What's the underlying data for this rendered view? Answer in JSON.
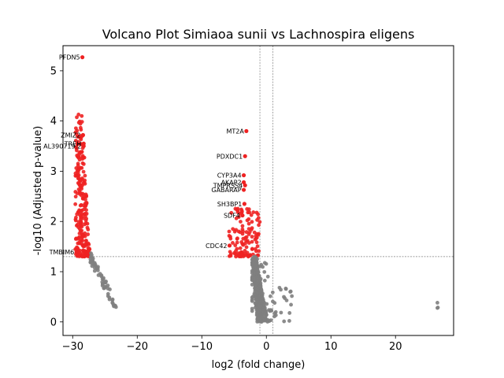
{
  "chart_data": {
    "type": "scatter",
    "title": "Volcano Plot Simiaoa sunii vs Lachnospira eligens",
    "xlabel": "log2 (fold change)",
    "ylabel": "-log10 (Adjusted p-value)",
    "xlim": [
      -31.5,
      29
    ],
    "ylim": [
      -0.27,
      5.5
    ],
    "xticks": [
      -30,
      -20,
      -10,
      0,
      10,
      20
    ],
    "yticks": [
      0,
      1,
      2,
      3,
      4,
      5
    ],
    "threshold_lines": {
      "y": 1.3,
      "x": [
        -1,
        1
      ]
    },
    "colors": {
      "significant": "#ee2222",
      "not_significant": "#808080",
      "threshold": "#808080"
    },
    "highlighted_points": [
      {
        "label": "PFDN5",
        "x": -28.5,
        "y": 5.27
      },
      {
        "label": "MT2A",
        "x": -3.1,
        "y": 3.8
      },
      {
        "label": "PDXDC1",
        "x": -3.3,
        "y": 3.3
      },
      {
        "label": "CYP3A4",
        "x": -3.5,
        "y": 2.92
      },
      {
        "label": "AKAP2",
        "x": -3.5,
        "y": 2.78
      },
      {
        "label": "TMPRSS4",
        "x": -3.3,
        "y": 2.72
      },
      {
        "label": "GABARAP",
        "x": -3.5,
        "y": 2.63
      },
      {
        "label": "ZMIZ2",
        "x": -28.4,
        "y": 3.72
      },
      {
        "label": "TREH",
        "x": -28.3,
        "y": 3.55
      },
      {
        "label": "AL390719.2",
        "x": -28.3,
        "y": 3.5
      },
      {
        "label": "SH3BP1",
        "x": -3.4,
        "y": 2.35
      },
      {
        "label": "SDF4",
        "x": -3.7,
        "y": 2.12
      },
      {
        "label": "TMBIM6",
        "x": -29.4,
        "y": 1.39
      },
      {
        "label": "CDC42",
        "x": -5.7,
        "y": 1.52
      }
    ],
    "clusters": [
      {
        "name": "left-significant",
        "x_range": [
          -29.6,
          -27.2
        ],
        "y_range": [
          1.3,
          4.15
        ],
        "color": "#ee2222",
        "count": 240
      },
      {
        "name": "left-tail",
        "x_range": [
          -27.3,
          -23.2
        ],
        "y_range": [
          0.28,
          1.3
        ],
        "color": "#808080",
        "count": 60
      },
      {
        "name": "center-significant",
        "x_range": [
          -5.8,
          -1.0
        ],
        "y_range": [
          1.3,
          2.3
        ],
        "color": "#ee2222",
        "count": 120
      },
      {
        "name": "center-cone",
        "x_range": [
          -2.2,
          4.0
        ],
        "y_range": [
          0.0,
          1.3
        ],
        "color": "#808080",
        "count": 500
      },
      {
        "name": "right-outliers",
        "x_range": [
          25.8,
          26.6
        ],
        "y_range": [
          0.25,
          0.46
        ],
        "color": "#808080",
        "count": 3
      }
    ]
  }
}
